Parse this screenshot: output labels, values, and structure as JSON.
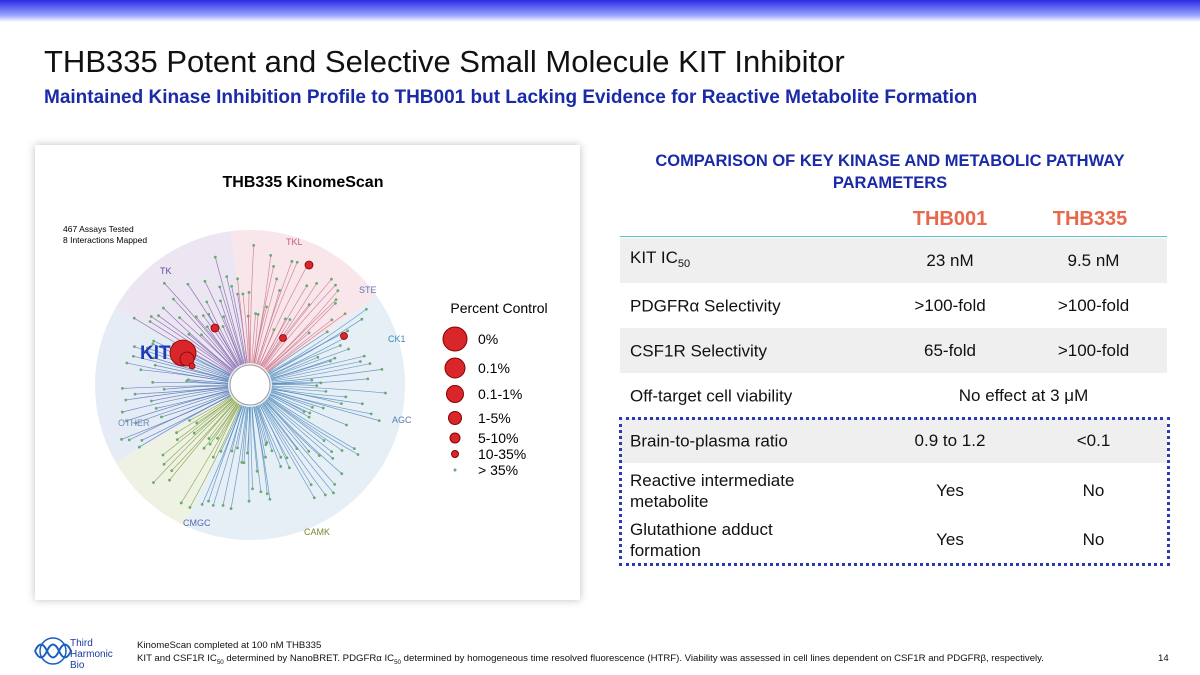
{
  "header": {
    "title": "THB335 Potent and Selective Small Molecule KIT Inhibitor",
    "subtitle": "Maintained Kinase Inhibition Profile to THB001 but Lacking Evidence for Reactive Metabolite Formation"
  },
  "kinome": {
    "title": "THB335 KinomeScan",
    "stats": [
      "467 Assays Tested",
      "8 Interactions Mapped"
    ],
    "families": [
      "TK",
      "TKL",
      "STE",
      "CK1",
      "AGC",
      "CAMK",
      "CMGC",
      "OTHER"
    ],
    "highlight": "KIT",
    "legend_title": "Percent Control",
    "legend": [
      "0%",
      "0.1%",
      "0.1-1%",
      "1-5%",
      "5-10%",
      "10-35%",
      "> 35%"
    ]
  },
  "table": {
    "title": "COMPARISON OF KEY KINASE AND METABOLIC PATHWAY PARAMETERS",
    "columns": [
      "THB001",
      "THB335"
    ],
    "rows": [
      {
        "label": "KIT IC",
        "label_sub": "50",
        "cells": [
          "23 nM",
          "9.5 nM"
        ]
      },
      {
        "label": "PDGFRα Selectivity",
        "cells": [
          ">100-fold",
          ">100-fold"
        ]
      },
      {
        "label": "CSF1R Selectivity",
        "cells": [
          "65-fold",
          ">100-fold"
        ]
      },
      {
        "label": "Off-target cell viability",
        "cells": [
          "No effect at 3 μM"
        ]
      },
      {
        "label": "Brain-to-plasma ratio",
        "cells": [
          "0.9 to 1.2",
          "<0.1"
        ]
      },
      {
        "label": "Reactive intermediate metabolite",
        "cells": [
          "Yes",
          "No"
        ]
      },
      {
        "label": "Glutathione adduct formation",
        "cells": [
          "Yes",
          "No"
        ]
      }
    ]
  },
  "footer": {
    "logo": [
      "Third",
      "Harmonic",
      "Bio"
    ],
    "note1": "KinomeScan completed at 100 nM THB335",
    "note2": [
      "KIT and CSF1R IC",
      "50",
      " determined by NanoBRET. PDGFRα IC",
      "50",
      " determined by homogeneous time resolved fluorescence (HTRF). Viability was assessed in cell lines dependent on CSF1R and PDGFRβ, respectively."
    ],
    "page": "14"
  }
}
